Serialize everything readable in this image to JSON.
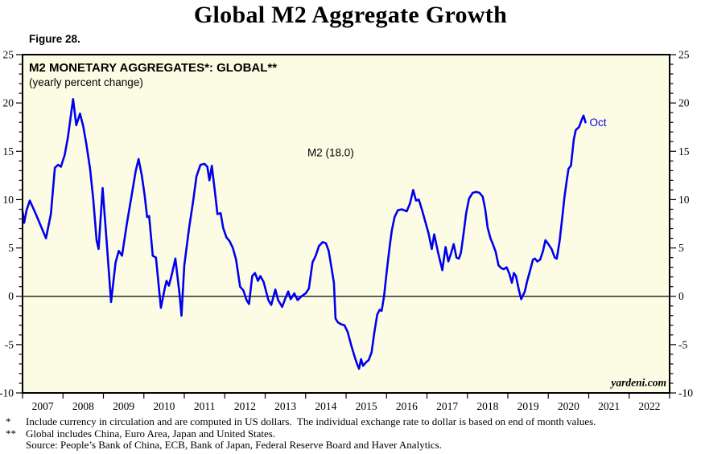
{
  "page_title": "Global M2 Aggregate Growth",
  "figure_label": "Figure 28.",
  "chart_header": {
    "title": "M2 MONETARY AGGREGATES*: GLOBAL**",
    "subtitle": "(yearly percent change)"
  },
  "footnotes": [
    {
      "marker": "*",
      "text": "Include currency in circulation and are computed in US dollars.  The individual exchange rate to dollar is based on end of month values."
    },
    {
      "marker": "**",
      "text": "Global includes China, Euro Area, Japan and United States."
    },
    {
      "marker": "",
      "text": "Source: People’s Bank of China, ECB, Bank of Japan, Federal Reserve Board and Haver Analytics."
    }
  ],
  "colors": {
    "line": "#0000EE",
    "plot_background": "#FCFCE4",
    "axis": "#000000",
    "annotation_blue": "#0000EE",
    "text": "#000000"
  },
  "chart_data": {
    "type": "line",
    "title": "M2 MONETARY AGGREGATES*: GLOBAL**",
    "subtitle": "(yearly percent change)",
    "grid": false,
    "zero_line": true,
    "x_axis": {
      "start": 2007,
      "end": 2023,
      "year_labels": [
        "2007",
        "2008",
        "2009",
        "2010",
        "2011",
        "2012",
        "2013",
        "2014",
        "2015",
        "2016",
        "2017",
        "2018",
        "2019",
        "2020",
        "2021",
        "2022"
      ]
    },
    "y_axis": {
      "min": -10,
      "max": 25,
      "major_step": 5,
      "minor_step": 1,
      "tick_labels": [
        "25",
        "20",
        "15",
        "10",
        "5",
        "0",
        "-5",
        "-10"
      ],
      "dual": true
    },
    "annotations": [
      {
        "text": "M2  (18.0)",
        "x": 2014.62,
        "y": 14.5,
        "anchor": "middle",
        "style": "sans",
        "color": "#000000"
      },
      {
        "text": "Oct",
        "x": 2021.02,
        "y": 17.6,
        "anchor": "start",
        "style": "sans",
        "color": "#0000EE"
      },
      {
        "text": "yardeni.com",
        "x": 2022.92,
        "y": -9.3,
        "anchor": "end",
        "style": "serif-bold-italic",
        "color": "#000000"
      }
    ],
    "series": [
      {
        "name": "M2",
        "latest_point_label": "Oct",
        "latest_value": 18.0,
        "points": [
          [
            2007.0,
            8.8
          ],
          [
            2007.04,
            7.6
          ],
          [
            2007.1,
            8.9
          ],
          [
            2007.18,
            9.9
          ],
          [
            2007.33,
            8.5
          ],
          [
            2007.45,
            7.3
          ],
          [
            2007.58,
            6.0
          ],
          [
            2007.7,
            8.5
          ],
          [
            2007.8,
            13.3
          ],
          [
            2007.88,
            13.6
          ],
          [
            2007.95,
            13.4
          ],
          [
            2008.04,
            14.6
          ],
          [
            2008.12,
            16.4
          ],
          [
            2008.25,
            20.4
          ],
          [
            2008.33,
            17.7
          ],
          [
            2008.42,
            18.9
          ],
          [
            2008.5,
            17.6
          ],
          [
            2008.58,
            15.7
          ],
          [
            2008.67,
            13.2
          ],
          [
            2008.75,
            10.0
          ],
          [
            2008.83,
            5.8
          ],
          [
            2008.88,
            4.9
          ],
          [
            2008.98,
            11.2
          ],
          [
            2009.08,
            5.7
          ],
          [
            2009.19,
            -0.6
          ],
          [
            2009.3,
            3.5
          ],
          [
            2009.38,
            4.7
          ],
          [
            2009.46,
            4.2
          ],
          [
            2009.58,
            7.5
          ],
          [
            2009.7,
            10.5
          ],
          [
            2009.8,
            13.0
          ],
          [
            2009.87,
            14.2
          ],
          [
            2009.95,
            12.5
          ],
          [
            2010.02,
            10.4
          ],
          [
            2010.08,
            8.2
          ],
          [
            2010.13,
            8.3
          ],
          [
            2010.22,
            4.2
          ],
          [
            2010.3,
            4.0
          ],
          [
            2010.42,
            -1.2
          ],
          [
            2010.52,
            0.9
          ],
          [
            2010.56,
            1.6
          ],
          [
            2010.62,
            1.1
          ],
          [
            2010.7,
            2.4
          ],
          [
            2010.78,
            3.9
          ],
          [
            2010.88,
            0.3
          ],
          [
            2010.93,
            -2.0
          ],
          [
            2011.0,
            3.2
          ],
          [
            2011.12,
            7.1
          ],
          [
            2011.22,
            9.9
          ],
          [
            2011.3,
            12.4
          ],
          [
            2011.4,
            13.6
          ],
          [
            2011.5,
            13.7
          ],
          [
            2011.57,
            13.4
          ],
          [
            2011.62,
            12.0
          ],
          [
            2011.68,
            13.5
          ],
          [
            2011.76,
            10.7
          ],
          [
            2011.82,
            8.5
          ],
          [
            2011.9,
            8.6
          ],
          [
            2011.96,
            7.1
          ],
          [
            2012.04,
            6.1
          ],
          [
            2012.12,
            5.7
          ],
          [
            2012.2,
            5.0
          ],
          [
            2012.28,
            3.8
          ],
          [
            2012.38,
            1.0
          ],
          [
            2012.46,
            0.6
          ],
          [
            2012.54,
            -0.4
          ],
          [
            2012.6,
            -0.8
          ],
          [
            2012.68,
            2.1
          ],
          [
            2012.75,
            2.4
          ],
          [
            2012.82,
            1.6
          ],
          [
            2012.88,
            2.1
          ],
          [
            2012.96,
            1.5
          ],
          [
            2013.08,
            -0.4
          ],
          [
            2013.15,
            -0.9
          ],
          [
            2013.25,
            0.7
          ],
          [
            2013.32,
            -0.4
          ],
          [
            2013.42,
            -1.1
          ],
          [
            2013.5,
            -0.2
          ],
          [
            2013.57,
            0.5
          ],
          [
            2013.63,
            -0.3
          ],
          [
            2013.72,
            0.3
          ],
          [
            2013.8,
            -0.4
          ],
          [
            2013.9,
            0.0
          ],
          [
            2014.0,
            0.3
          ],
          [
            2014.08,
            0.8
          ],
          [
            2014.17,
            3.5
          ],
          [
            2014.25,
            4.2
          ],
          [
            2014.33,
            5.2
          ],
          [
            2014.42,
            5.6
          ],
          [
            2014.5,
            5.5
          ],
          [
            2014.57,
            4.7
          ],
          [
            2014.63,
            3.2
          ],
          [
            2014.7,
            1.4
          ],
          [
            2014.74,
            -2.3
          ],
          [
            2014.8,
            -2.7
          ],
          [
            2014.88,
            -2.9
          ],
          [
            2014.96,
            -3.0
          ],
          [
            2015.04,
            -3.7
          ],
          [
            2015.13,
            -5.1
          ],
          [
            2015.2,
            -6.1
          ],
          [
            2015.27,
            -7.0
          ],
          [
            2015.32,
            -7.5
          ],
          [
            2015.37,
            -6.5
          ],
          [
            2015.42,
            -7.2
          ],
          [
            2015.5,
            -6.8
          ],
          [
            2015.56,
            -6.6
          ],
          [
            2015.63,
            -5.8
          ],
          [
            2015.7,
            -3.7
          ],
          [
            2015.77,
            -1.9
          ],
          [
            2015.83,
            -1.4
          ],
          [
            2015.88,
            -1.5
          ],
          [
            2015.94,
            0.0
          ],
          [
            2016.0,
            2.4
          ],
          [
            2016.07,
            4.9
          ],
          [
            2016.13,
            6.8
          ],
          [
            2016.2,
            8.2
          ],
          [
            2016.28,
            8.9
          ],
          [
            2016.38,
            9.0
          ],
          [
            2016.5,
            8.8
          ],
          [
            2016.58,
            9.6
          ],
          [
            2016.66,
            11.0
          ],
          [
            2016.73,
            9.9
          ],
          [
            2016.8,
            10.0
          ],
          [
            2016.88,
            8.9
          ],
          [
            2016.96,
            7.7
          ],
          [
            2017.04,
            6.5
          ],
          [
            2017.12,
            4.9
          ],
          [
            2017.18,
            6.4
          ],
          [
            2017.27,
            4.6
          ],
          [
            2017.38,
            2.7
          ],
          [
            2017.46,
            5.1
          ],
          [
            2017.53,
            3.6
          ],
          [
            2017.6,
            4.5
          ],
          [
            2017.66,
            5.4
          ],
          [
            2017.73,
            4.0
          ],
          [
            2017.79,
            3.9
          ],
          [
            2017.84,
            4.5
          ],
          [
            2017.9,
            6.3
          ],
          [
            2017.97,
            8.6
          ],
          [
            2018.04,
            10.1
          ],
          [
            2018.13,
            10.7
          ],
          [
            2018.22,
            10.8
          ],
          [
            2018.3,
            10.7
          ],
          [
            2018.38,
            10.3
          ],
          [
            2018.44,
            9.0
          ],
          [
            2018.5,
            7.1
          ],
          [
            2018.57,
            6.0
          ],
          [
            2018.63,
            5.4
          ],
          [
            2018.7,
            4.6
          ],
          [
            2018.77,
            3.2
          ],
          [
            2018.84,
            2.9
          ],
          [
            2018.9,
            2.8
          ],
          [
            2018.97,
            3.0
          ],
          [
            2019.04,
            2.3
          ],
          [
            2019.1,
            1.4
          ],
          [
            2019.15,
            2.4
          ],
          [
            2019.2,
            2.1
          ],
          [
            2019.27,
            0.7
          ],
          [
            2019.33,
            -0.3
          ],
          [
            2019.42,
            0.5
          ],
          [
            2019.48,
            1.6
          ],
          [
            2019.56,
            2.8
          ],
          [
            2019.62,
            3.8
          ],
          [
            2019.67,
            3.9
          ],
          [
            2019.73,
            3.6
          ],
          [
            2019.8,
            3.8
          ],
          [
            2019.87,
            4.7
          ],
          [
            2019.93,
            5.8
          ],
          [
            2020.0,
            5.4
          ],
          [
            2020.08,
            4.9
          ],
          [
            2020.16,
            4.0
          ],
          [
            2020.21,
            3.9
          ],
          [
            2020.28,
            5.7
          ],
          [
            2020.34,
            7.9
          ],
          [
            2020.4,
            10.3
          ],
          [
            2020.46,
            12.1
          ],
          [
            2020.5,
            13.2
          ],
          [
            2020.56,
            13.5
          ],
          [
            2020.63,
            16.2
          ],
          [
            2020.68,
            17.2
          ],
          [
            2020.76,
            17.5
          ],
          [
            2020.82,
            18.2
          ],
          [
            2020.87,
            18.7
          ],
          [
            2020.92,
            18.0
          ]
        ]
      }
    ]
  }
}
